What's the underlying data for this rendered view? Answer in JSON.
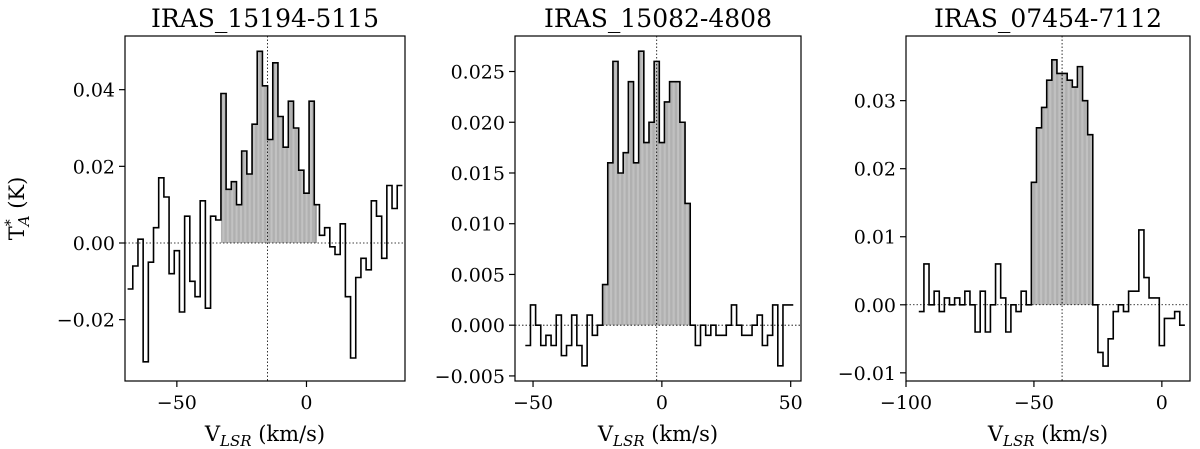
{
  "chart_data": [
    {
      "type": "line",
      "title": "IRAS_15194-5115",
      "xlabel_main": "V",
      "xlabel_sub": "LSR",
      "xlabel_rest": " (km/s)",
      "ylabel_main": "T",
      "ylabel_sup": "*",
      "ylabel_sub": "A",
      "ylabel_rest": " (K)",
      "xlim": [
        -70,
        38
      ],
      "ylim": [
        -0.036,
        0.054
      ],
      "xticks": [
        -50,
        0
      ],
      "xtick_labels": [
        "−50",
        "0"
      ],
      "yticks": [
        -0.02,
        0.0,
        0.02,
        0.04
      ],
      "ytick_labels": [
        "−0.02",
        "0.00",
        "0.02",
        "0.04"
      ],
      "v_center": -15,
      "fill_range": [
        -33,
        4
      ],
      "x": [
        -68,
        -66,
        -64,
        -62,
        -60,
        -58,
        -56,
        -54,
        -52,
        -50,
        -48,
        -46,
        -44,
        -42,
        -40,
        -38,
        -36,
        -34,
        -32,
        -30,
        -28,
        -26,
        -24,
        -22,
        -20,
        -18,
        -16,
        -14,
        -12,
        -10,
        -8,
        -6,
        -4,
        -2,
        0,
        2,
        4,
        6,
        8,
        10,
        12,
        14,
        16,
        18,
        20,
        22,
        24,
        26,
        28,
        30,
        32,
        34,
        36
      ],
      "y": [
        -0.012,
        -0.006,
        0.001,
        -0.031,
        -0.005,
        0.004,
        0.017,
        0.012,
        -0.008,
        -0.002,
        -0.018,
        0.007,
        -0.01,
        -0.014,
        0.011,
        -0.017,
        0.007,
        0.006,
        0.039,
        0.014,
        0.016,
        0.01,
        0.024,
        0.018,
        0.031,
        0.05,
        0.041,
        0.027,
        0.047,
        0.033,
        0.025,
        0.037,
        0.03,
        0.019,
        0.013,
        0.037,
        0.01,
        0.002,
        0.004,
        -0.001,
        -0.003,
        0.005,
        -0.014,
        -0.03,
        -0.009,
        -0.004,
        -0.007,
        0.011,
        0.007,
        -0.004,
        0.015,
        0.009,
        0.015
      ]
    },
    {
      "type": "line",
      "title": "IRAS_15082-4808",
      "xlabel_main": "V",
      "xlabel_sub": "LSR",
      "xlabel_rest": " (km/s)",
      "xlim": [
        -57,
        54
      ],
      "ylim": [
        -0.0055,
        0.0285
      ],
      "xticks": [
        -50,
        0,
        50
      ],
      "xtick_labels": [
        "−50",
        "0",
        "50"
      ],
      "yticks": [
        -0.005,
        0.0,
        0.005,
        0.01,
        0.015,
        0.02,
        0.025
      ],
      "ytick_labels": [
        "−0.005",
        "0.000",
        "0.005",
        "0.010",
        "0.015",
        "0.020",
        "0.025"
      ],
      "v_center": -2,
      "fill_range": [
        -24,
        13
      ],
      "x": [
        -52,
        -50,
        -48,
        -46,
        -44,
        -42,
        -40,
        -38,
        -36,
        -34,
        -32,
        -30,
        -28,
        -26,
        -24,
        -22,
        -20,
        -18,
        -16,
        -14,
        -12,
        -10,
        -8,
        -6,
        -4,
        -2,
        0,
        2,
        4,
        6,
        8,
        10,
        12,
        14,
        16,
        18,
        20,
        22,
        24,
        26,
        28,
        30,
        32,
        34,
        36,
        38,
        40,
        42,
        44,
        46,
        48,
        50
      ],
      "y": [
        -0.002,
        0.002,
        0.0,
        -0.002,
        -0.001,
        -0.002,
        0.001,
        -0.003,
        -0.002,
        0.001,
        -0.002,
        -0.004,
        0.001,
        -0.001,
        0.0,
        0.004,
        0.016,
        0.026,
        0.015,
        0.017,
        0.024,
        0.016,
        0.027,
        0.018,
        0.02,
        0.026,
        0.018,
        0.022,
        0.024,
        0.024,
        0.02,
        0.012,
        0.0,
        -0.002,
        0.0,
        -0.001,
        0.0,
        -0.001,
        -0.001,
        0.0,
        0.002,
        0.0,
        -0.001,
        -0.001,
        0.0,
        0.001,
        -0.002,
        -0.001,
        0.002,
        -0.004,
        0.002,
        0.002
      ]
    },
    {
      "type": "line",
      "title": "IRAS_07454-7112",
      "xlabel_main": "V",
      "xlabel_sub": "LSR",
      "xlabel_rest": " (km/s)",
      "xlim": [
        -100,
        11
      ],
      "ylim": [
        -0.0112,
        0.0395
      ],
      "xticks": [
        -100,
        -50,
        0
      ],
      "xtick_labels": [
        "−100",
        "−50",
        "0"
      ],
      "yticks": [
        -0.01,
        0.0,
        0.01,
        0.02,
        0.03
      ],
      "ytick_labels": [
        "−0.01",
        "0.00",
        "0.01",
        "0.02",
        "0.03"
      ],
      "v_center": -39,
      "fill_range": [
        -51,
        -25
      ],
      "x": [
        -94,
        -92,
        -90,
        -88,
        -86,
        -84,
        -82,
        -80,
        -78,
        -76,
        -74,
        -72,
        -70,
        -68,
        -66,
        -64,
        -62,
        -60,
        -58,
        -56,
        -54,
        -52,
        -50,
        -48,
        -46,
        -44,
        -42,
        -40,
        -38,
        -36,
        -34,
        -32,
        -30,
        -28,
        -26,
        -24,
        -22,
        -20,
        -18,
        -16,
        -14,
        -12,
        -10,
        -8,
        -6,
        -4,
        -2,
        0,
        2,
        4,
        6,
        8
      ],
      "y": [
        -0.001,
        0.006,
        0.0,
        0.002,
        -0.001,
        0.001,
        0.0,
        0.001,
        0.0,
        0.002,
        0.0,
        -0.004,
        0.002,
        -0.004,
        0.0,
        0.006,
        0.001,
        -0.004,
        0.0,
        -0.001,
        0.002,
        0.0,
        0.018,
        0.026,
        0.029,
        0.033,
        0.036,
        0.034,
        0.034,
        0.033,
        0.032,
        0.035,
        0.03,
        0.025,
        0.0,
        -0.007,
        -0.009,
        -0.005,
        -0.001,
        0.0,
        -0.001,
        0.002,
        0.002,
        0.011,
        0.004,
        0.001,
        0.001,
        -0.006,
        -0.002,
        -0.002,
        -0.001,
        -0.003
      ]
    }
  ]
}
